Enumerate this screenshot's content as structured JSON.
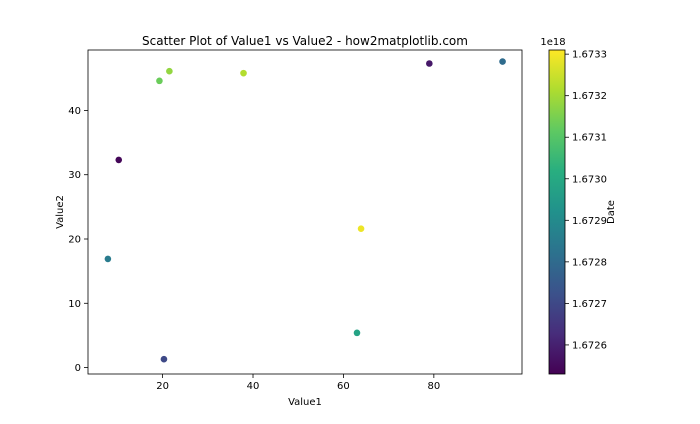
{
  "chart_data": {
    "type": "scatter",
    "title": "Scatter Plot of Value1 vs Value2 - how2matplotlib.com",
    "xlabel": "Value1",
    "ylabel": "Value2",
    "xlim": [
      3.5,
      99.5
    ],
    "ylim": [
      -1.0,
      49.4
    ],
    "xticks": [
      20,
      40,
      60,
      80
    ],
    "yticks": [
      0,
      10,
      20,
      30,
      40
    ],
    "grid": false,
    "points": [
      {
        "x": 10.3,
        "y": 32.3,
        "c": 1.67254
      },
      {
        "x": 20.3,
        "y": 1.3,
        "c": 1.6727
      },
      {
        "x": 63.0,
        "y": 5.4,
        "c": 1.67298
      },
      {
        "x": 7.9,
        "y": 16.9,
        "c": 1.67285
      },
      {
        "x": 19.3,
        "y": 44.6,
        "c": 1.67313
      },
      {
        "x": 21.5,
        "y": 46.1,
        "c": 1.67318
      },
      {
        "x": 37.9,
        "y": 45.8,
        "c": 1.67322
      },
      {
        "x": 63.9,
        "y": 21.6,
        "c": 1.67329
      },
      {
        "x": 79.0,
        "y": 47.3,
        "c": 1.67258
      },
      {
        "x": 95.2,
        "y": 47.6,
        "c": 1.6728
      }
    ],
    "colorbar": {
      "label": "Date",
      "offset_label": "1e18",
      "range": [
        1.67253,
        1.67331
      ],
      "ticks": [
        "1.6726",
        "1.6727",
        "1.6728",
        "1.6729",
        "1.6730",
        "1.6731",
        "1.6732",
        "1.6733"
      ],
      "colormap": "viridis"
    }
  }
}
